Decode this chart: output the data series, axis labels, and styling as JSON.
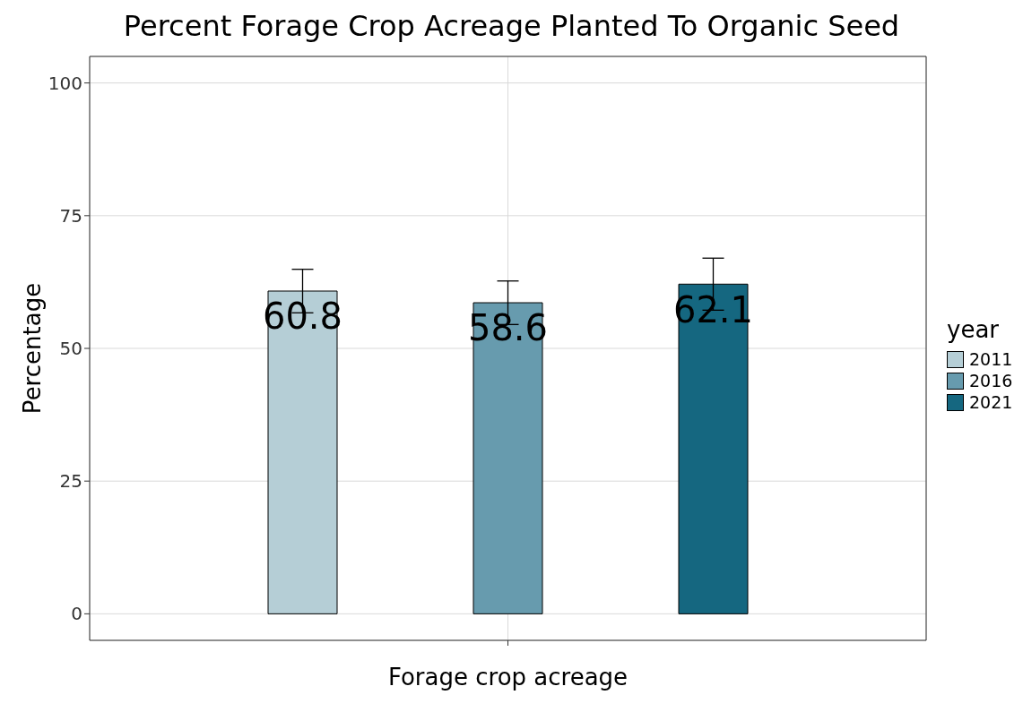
{
  "chart_data": {
    "type": "bar",
    "title": "Percent Forage Crop Acreage Planted To Organic Seed",
    "xlabel": "Forage crop acreage",
    "ylabel": "Percentage",
    "legend_title": "year",
    "categories": [
      null
    ],
    "series": [
      {
        "name": "2011",
        "color": "#b5ced6",
        "values": [
          60.8
        ],
        "errors": [
          4.1
        ]
      },
      {
        "name": "2016",
        "color": "#679bae",
        "values": [
          58.6
        ],
        "errors": [
          4.1
        ]
      },
      {
        "name": "2021",
        "color": "#156780",
        "values": [
          62.1
        ],
        "errors": [
          4.9
        ]
      }
    ],
    "ylim": [
      -5,
      105
    ],
    "yticks": [
      0,
      25,
      50,
      75,
      100
    ],
    "grid": true,
    "legend": "right",
    "data_labels": true
  }
}
